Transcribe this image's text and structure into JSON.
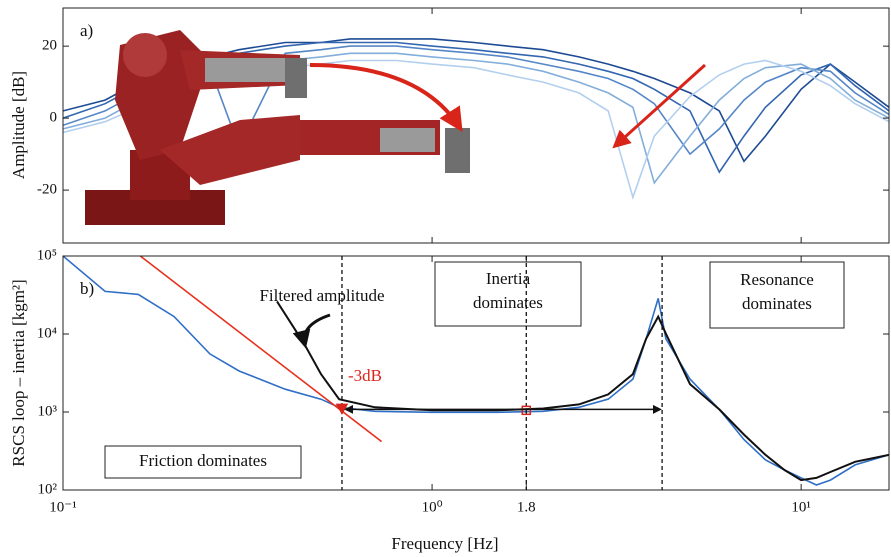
{
  "chart_data": [
    {
      "type": "line",
      "panel_label": "a)",
      "ylabel": "Amplitude [dB]",
      "log_x": true,
      "xlim": [
        0.1,
        17.3
      ],
      "ylim": [
        -34.7,
        30.6
      ],
      "xticks": [
        0.1,
        1,
        10
      ],
      "yticks": [
        -20,
        0,
        20
      ],
      "x": [
        0.1,
        0.13,
        0.16,
        0.2,
        0.25,
        0.3,
        0.4,
        0.5,
        0.6,
        0.7,
        0.8,
        1,
        1.3,
        1.6,
        2,
        2.5,
        3,
        3.5,
        4,
        5,
        6,
        7,
        8,
        10,
        12,
        14,
        17.3
      ],
      "series": [
        {
          "color": "#1d4a94",
          "values": [
            2,
            5,
            10,
            14,
            17,
            19,
            21,
            21,
            22,
            22,
            22,
            22,
            21,
            20,
            19,
            17,
            15,
            13,
            11,
            7,
            2,
            -12,
            -5,
            8,
            15,
            10,
            3
          ]
        },
        {
          "color": "#3266b0",
          "values": [
            0,
            4,
            9,
            13,
            16,
            18,
            20,
            21,
            21,
            21,
            21,
            20,
            19,
            18,
            17,
            15,
            13,
            11,
            8,
            2,
            -15,
            -5,
            3,
            12,
            15,
            9,
            2
          ]
        },
        {
          "color": "#5587c7",
          "values": [
            -2,
            2,
            7,
            11,
            14,
            -8,
            18,
            19,
            20,
            20,
            20,
            19,
            18,
            17,
            15,
            13,
            11,
            8,
            4,
            -10,
            -3,
            5,
            10,
            14,
            13,
            7,
            1
          ]
        },
        {
          "color": "#83aedb",
          "values": [
            -3,
            0,
            5,
            9,
            12,
            14,
            16,
            17,
            18,
            18,
            18,
            17,
            16,
            15,
            13,
            10,
            7,
            3,
            -18,
            -5,
            5,
            11,
            14,
            15,
            11,
            5,
            0
          ]
        },
        {
          "color": "#b2d0ee",
          "values": [
            -4,
            -1,
            3,
            7,
            10,
            12,
            14,
            15,
            16,
            16,
            16,
            15,
            14,
            12,
            10,
            7,
            2,
            -22,
            -5,
            6,
            12,
            15,
            16,
            13,
            9,
            4,
            -1
          ]
        }
      ]
    },
    {
      "type": "line",
      "panel_label": "b)",
      "ylabel": "RSCS loop – inertia [kgm²]",
      "xlabel": "Frequency [Hz]",
      "log_x": true,
      "log_y": true,
      "xlim": [
        0.1,
        17.3
      ],
      "ylim": [
        100,
        100000
      ],
      "xticks": [
        {
          "value": 0.1,
          "label": "10⁻¹"
        },
        {
          "value": 1,
          "label": "10⁰"
        },
        {
          "value": 1.8,
          "label": "1.8"
        },
        {
          "value": 10,
          "label": "10¹"
        }
      ],
      "yticks": [
        {
          "value": 100,
          "label": "10²"
        },
        {
          "value": 1000,
          "label": "10³"
        },
        {
          "value": 10000,
          "label": "10⁴"
        },
        {
          "value": 100000,
          "label": "10⁵"
        }
      ],
      "series": [
        {
          "color": "#2f6fc6",
          "x": [
            0.1,
            0.13,
            0.16,
            0.2,
            0.25,
            0.3,
            0.4,
            0.5,
            0.56,
            0.7,
            1,
            1.5,
            2,
            2.5,
            3,
            3.5,
            3.8,
            4.1,
            4.3,
            5,
            6,
            7,
            8,
            9,
            10,
            11,
            12,
            14,
            17.3
          ],
          "values": [
            100000,
            35200,
            32200,
            16700,
            5560,
            3350,
            1960,
            1460,
            1150,
            1020,
            990,
            990,
            1020,
            1150,
            1460,
            2640,
            8690,
            28600,
            8690,
            2640,
            1080,
            443,
            244,
            181,
            143,
            116,
            134,
            210,
            283
          ]
        },
        {
          "color": "#111111",
          "x": [
            0.38,
            0.45,
            0.5,
            0.56,
            0.7,
            1,
            1.5,
            2,
            2.5,
            3,
            3.5,
            3.8,
            4.1,
            4.3,
            5,
            6,
            7,
            8,
            9,
            10,
            11,
            12,
            14,
            17.3
          ],
          "values": [
            26200,
            7500,
            3060,
            1460,
            1150,
            1050,
            1050,
            1110,
            1250,
            1680,
            3060,
            8690,
            16700,
            10100,
            2280,
            1080,
            513,
            283,
            181,
            134,
            143,
            170,
            230,
            283
          ]
        },
        {
          "color": "#e8321e",
          "x": [
            0.162,
            0.73
          ],
          "values": [
            100000,
            417
          ]
        }
      ],
      "vlines": [
        0.57,
        1.8,
        4.2
      ],
      "markers": [
        {
          "x": 0.57,
          "y": 1080,
          "shape": "triangle"
        },
        {
          "x": 1.8,
          "y": 1050,
          "shape": "square"
        }
      ],
      "annotations": {
        "filtered": "Filtered amplitude",
        "minus3db": "-3dB",
        "inertia": [
          "Inertia",
          "dominates"
        ],
        "resonance": [
          "Resonance",
          "dominates"
        ],
        "friction": "Friction dominates"
      }
    }
  ]
}
